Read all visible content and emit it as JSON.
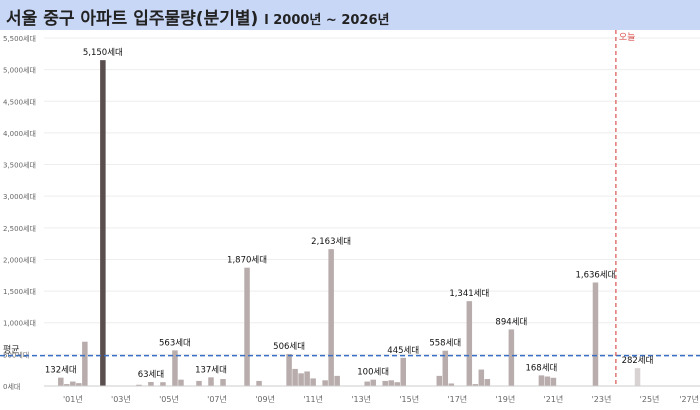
{
  "chart_data": {
    "type": "bar",
    "title": "서울 중구 아파트 입주물량(분기별)",
    "subtitle": "l 2000년 ~ 2026년",
    "xlabel": "",
    "ylabel": "",
    "ylim": [
      0,
      5500
    ],
    "yticks": [
      0,
      500,
      1000,
      1500,
      2000,
      2500,
      3000,
      3500,
      4000,
      4500,
      5000,
      5500
    ],
    "ytick_labels": [
      "0세대",
      "500세대",
      "1,000세대",
      "1,500세대",
      "2,000세대",
      "2,500세대",
      "3,000세대",
      "3,500세대",
      "4,000세대",
      "4,500세대",
      "5,000세대",
      "5,500세대"
    ],
    "xticks": [
      {
        "t": 2001,
        "label": "'01년"
      },
      {
        "t": 2003,
        "label": "'03년"
      },
      {
        "t": 2005,
        "label": "'05년"
      },
      {
        "t": 2007,
        "label": "'07년"
      },
      {
        "t": 2009,
        "label": "'09년"
      },
      {
        "t": 2011,
        "label": "'11년"
      },
      {
        "t": 2013,
        "label": "'13년"
      },
      {
        "t": 2015,
        "label": "'15년"
      },
      {
        "t": 2017,
        "label": "'17년"
      },
      {
        "t": 2019,
        "label": "'19년"
      },
      {
        "t": 2021,
        "label": "'21년"
      },
      {
        "t": 2023,
        "label": "'23년"
      },
      {
        "t": 2025,
        "label": "'25년"
      },
      {
        "t": 2027,
        "label": "'27년"
      }
    ],
    "average": 480,
    "average_label": "평균",
    "today": 2023.6,
    "today_label": "오늘",
    "highlight_color": "#5a4e4e",
    "past_color": "#b8acac",
    "future_color": "#d9d2d2",
    "avg_line_color": "#3a6fc4",
    "today_line_color": "#d9534f",
    "bars": [
      {
        "t": 2000.5,
        "v": 132
      },
      {
        "t": 2000.75,
        "v": 30
      },
      {
        "t": 2001.0,
        "v": 70
      },
      {
        "t": 2001.25,
        "v": 45
      },
      {
        "t": 2001.5,
        "v": 700
      },
      {
        "t": 2002.25,
        "v": 5150,
        "highlight": true
      },
      {
        "t": 2003.75,
        "v": 20
      },
      {
        "t": 2004.25,
        "v": 63
      },
      {
        "t": 2004.75,
        "v": 60
      },
      {
        "t": 2005.25,
        "v": 563
      },
      {
        "t": 2005.5,
        "v": 100
      },
      {
        "t": 2006.25,
        "v": 80
      },
      {
        "t": 2006.75,
        "v": 137
      },
      {
        "t": 2007.25,
        "v": 110
      },
      {
        "t": 2008.25,
        "v": 1870
      },
      {
        "t": 2008.75,
        "v": 80
      },
      {
        "t": 2010.0,
        "v": 506
      },
      {
        "t": 2010.25,
        "v": 270
      },
      {
        "t": 2010.5,
        "v": 200
      },
      {
        "t": 2010.75,
        "v": 230
      },
      {
        "t": 2011.0,
        "v": 120
      },
      {
        "t": 2011.5,
        "v": 90
      },
      {
        "t": 2011.75,
        "v": 2163
      },
      {
        "t": 2012.0,
        "v": 160
      },
      {
        "t": 2013.25,
        "v": 70
      },
      {
        "t": 2013.5,
        "v": 100
      },
      {
        "t": 2014.0,
        "v": 80
      },
      {
        "t": 2014.25,
        "v": 90
      },
      {
        "t": 2014.5,
        "v": 60
      },
      {
        "t": 2014.75,
        "v": 445
      },
      {
        "t": 2016.25,
        "v": 160
      },
      {
        "t": 2016.5,
        "v": 558
      },
      {
        "t": 2016.75,
        "v": 40
      },
      {
        "t": 2017.5,
        "v": 1341
      },
      {
        "t": 2017.75,
        "v": 30
      },
      {
        "t": 2018.0,
        "v": 260
      },
      {
        "t": 2018.25,
        "v": 110
      },
      {
        "t": 2019.25,
        "v": 894
      },
      {
        "t": 2020.5,
        "v": 168
      },
      {
        "t": 2020.75,
        "v": 150
      },
      {
        "t": 2021.0,
        "v": 130
      },
      {
        "t": 2022.75,
        "v": 1636
      },
      {
        "t": 2024.5,
        "v": 282
      }
    ],
    "data_labels": [
      {
        "t": 2000.5,
        "v": 132,
        "text": "132세대"
      },
      {
        "t": 2002.25,
        "v": 5150,
        "text": "5,150세대"
      },
      {
        "t": 2004.25,
        "v": 63,
        "text": "63세대"
      },
      {
        "t": 2005.25,
        "v": 563,
        "text": "563세대"
      },
      {
        "t": 2006.75,
        "v": 137,
        "text": "137세대"
      },
      {
        "t": 2008.25,
        "v": 1870,
        "text": "1,870세대"
      },
      {
        "t": 2010.0,
        "v": 506,
        "text": "506세대"
      },
      {
        "t": 2011.75,
        "v": 2163,
        "text": "2,163세대"
      },
      {
        "t": 2013.5,
        "v": 100,
        "text": "100세대"
      },
      {
        "t": 2014.75,
        "v": 445,
        "text": "445세대"
      },
      {
        "t": 2016.5,
        "v": 558,
        "text": "558세대"
      },
      {
        "t": 2017.5,
        "v": 1341,
        "text": "1,341세대"
      },
      {
        "t": 2019.25,
        "v": 894,
        "text": "894세대"
      },
      {
        "t": 2020.5,
        "v": 168,
        "text": "168세대"
      },
      {
        "t": 2022.75,
        "v": 1636,
        "text": "1,636세대"
      },
      {
        "t": 2024.5,
        "v": 282,
        "text": "282세대"
      }
    ]
  }
}
